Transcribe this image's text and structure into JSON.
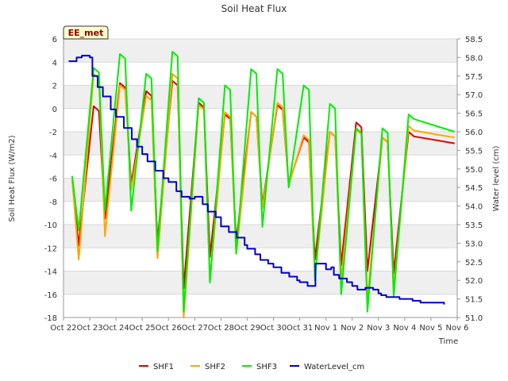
{
  "chart_data": {
    "type": "line",
    "title": "Soil Heat Flux",
    "badge": "EE_met",
    "xlabel": "Time",
    "ylabel": "Soil Heat Flux (W/m2)",
    "y2label": "Water level (cm)",
    "xlim": [
      0,
      15
    ],
    "ylim": [
      -18,
      6
    ],
    "y2lim": [
      51.0,
      58.5
    ],
    "x_ticks": [
      "Oct 22",
      "Oct 23",
      "Oct 24",
      "Oct 25",
      "Oct 26",
      "Oct 27",
      "Oct 28",
      "Oct 29",
      "Oct 30",
      "Oct 31",
      "Nov 1",
      "Nov 2",
      "Nov 3",
      "Nov 4",
      "Nov 5",
      "Nov 6"
    ],
    "y_ticks": [
      "6",
      "4",
      "2",
      "0",
      "-2",
      "-4",
      "-6",
      "-8",
      "-10",
      "-12",
      "-14",
      "-16",
      "-18"
    ],
    "y2_ticks": [
      "58.5",
      "58.0",
      "57.5",
      "57.0",
      "56.5",
      "56.0",
      "55.5",
      "55.0",
      "54.5",
      "54.0",
      "53.5",
      "53.0",
      "52.5",
      "52.0",
      "51.5",
      "51.0"
    ],
    "series": [
      {
        "name": "SHF1",
        "color": "#dd0000",
        "axis": "left",
        "troughs": [
          -11.8,
          -9.5,
          -6.5,
          -11.5,
          -15.5,
          -12.8,
          -11.5,
          -8.3,
          -6.5,
          -13,
          -13.5,
          -14,
          -14.2
        ],
        "peaks": [
          0.2,
          2.2,
          1.5,
          2.4,
          0.5,
          -0.5,
          -0.3,
          0.3,
          -2.5,
          -2,
          -1.2,
          -2.5,
          -2
        ],
        "end": -3
      },
      {
        "name": "SHF2",
        "color": "#ffa500",
        "axis": "left",
        "troughs": [
          -13,
          -11,
          -7,
          -12.9,
          -18,
          -14.8,
          -12.5,
          -8.6,
          -6.6,
          -14.5,
          -14.8,
          -16.5,
          -15.5
        ],
        "peaks": [
          3,
          2,
          1.1,
          3,
          0.3,
          -0.3,
          -0.3,
          0.5,
          -2.3,
          -2,
          -1.8,
          -2.5,
          -1.5
        ],
        "end": -2.5
      },
      {
        "name": "SHF3",
        "color": "#00ee00",
        "axis": "left",
        "troughs": [
          -10.5,
          -8.8,
          -8.8,
          -12.3,
          -17.5,
          -15,
          -12.5,
          -10.2,
          -6.8,
          -14.8,
          -16,
          -17.5,
          -16.2
        ],
        "peaks": [
          3.5,
          4.7,
          3,
          4.9,
          0.9,
          2,
          3.4,
          3.4,
          2,
          0.4,
          -1.7,
          -1.7,
          -0.5
        ],
        "end": -2
      },
      {
        "name": "WaterLevel_cm",
        "color": "#0000cc",
        "axis": "right",
        "x": [
          0.2,
          0.5,
          0.7,
          1.0,
          1.1,
          1.3,
          1.5,
          1.8,
          2.0,
          2.3,
          2.6,
          2.8,
          3.0,
          3.2,
          3.5,
          3.8,
          4.0,
          4.3,
          4.5,
          4.8,
          5.0,
          5.3,
          5.5,
          5.8,
          6.0,
          6.3,
          6.6,
          6.9,
          7.0,
          7.3,
          7.5,
          7.8,
          8.0,
          8.3,
          8.6,
          8.9,
          9.0,
          9.3,
          9.6,
          9.9,
          10.0,
          10.2,
          10.3,
          10.5,
          10.8,
          11.0,
          11.2,
          11.5,
          11.8,
          12.0,
          12.1,
          12.3,
          12.5,
          12.8,
          13.0,
          13.3,
          13.6,
          14.0,
          14.5
        ],
        "values": [
          57.9,
          58.0,
          58.05,
          58.0,
          57.5,
          57.2,
          56.95,
          56.6,
          56.4,
          56.1,
          55.8,
          55.6,
          55.4,
          55.2,
          54.95,
          54.75,
          54.65,
          54.4,
          54.25,
          54.2,
          54.25,
          54.05,
          53.85,
          53.7,
          53.45,
          53.3,
          53.15,
          52.95,
          52.85,
          52.7,
          52.55,
          52.45,
          52.35,
          52.2,
          52.1,
          52.0,
          51.95,
          51.85,
          52.45,
          52.45,
          52.3,
          52.35,
          52.15,
          52.05,
          51.95,
          51.85,
          51.75,
          51.8,
          51.75,
          51.65,
          51.6,
          51.55,
          51.55,
          51.5,
          51.5,
          51.45,
          51.4,
          51.4,
          51.35
        ]
      }
    ],
    "legend": {
      "position": "bottom",
      "entries": [
        "SHF1",
        "SHF2",
        "SHF3",
        "WaterLevel_cm"
      ]
    }
  }
}
